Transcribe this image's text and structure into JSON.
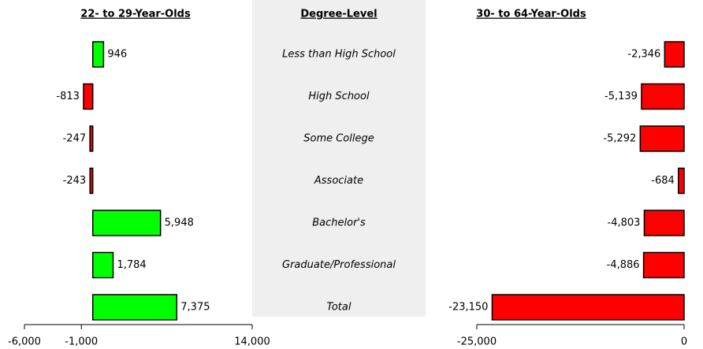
{
  "chart_data": [
    {
      "type": "hbar",
      "title": "22- to 29-Year-Olds",
      "category_title": "Degree-Level",
      "categories": [
        "Less than High School",
        "High School",
        "Some College",
        "Associate",
        "Bachelor's",
        "Graduate/Professional",
        "Total"
      ],
      "values": [
        946,
        -813,
        -247,
        -243,
        5948,
        1784,
        7375
      ],
      "value_labels": [
        "946",
        "-813",
        "-247",
        "-243",
        "5,948",
        "1,784",
        "7,375"
      ],
      "colors": [
        "#00ff00",
        "#ff0000"
      ],
      "xlim": [
        -6000,
        14000
      ],
      "xticks": [
        {
          "value": -6000,
          "label": "-6,000"
        },
        {
          "value": -1000,
          "label": "-1,000"
        },
        {
          "value": 14000,
          "label": "14,000"
        }
      ]
    },
    {
      "type": "hbar",
      "title": "30- to 64-Year-Olds",
      "values": [
        -2346,
        -5139,
        -5292,
        -684,
        -4803,
        -4886,
        -23150
      ],
      "value_labels": [
        "-2,346",
        "-5,139",
        "-5,292",
        "-684",
        "-4,803",
        "-4,886",
        "-23,150"
      ],
      "colors": [
        "#00ff00",
        "#ff0000"
      ],
      "xlim": [
        -25000,
        0
      ],
      "xticks": [
        {
          "value": -25000,
          "label": "-25,000"
        },
        0
      ]
    }
  ]
}
